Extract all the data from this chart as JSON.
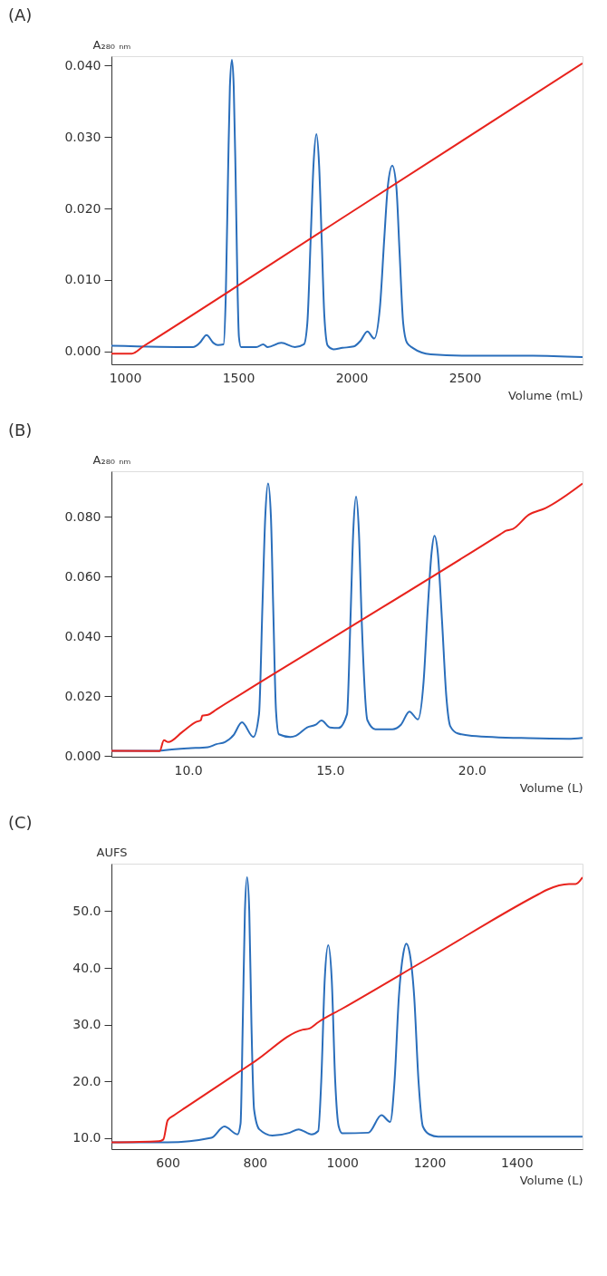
{
  "chart_data": [
    {
      "type": "line",
      "title": "(A)",
      "xlabel": "Volume (mL)",
      "ylabel": "A₂₈₀ ₙₘ",
      "xlim": [
        940,
        3020
      ],
      "ylim": [
        -0.0018,
        0.0413
      ],
      "xticks": [
        {
          "value": 1000,
          "label": "1000"
        },
        {
          "value": 1500,
          "label": "1500"
        },
        {
          "value": 2000,
          "label": "2000"
        },
        {
          "value": 2500,
          "label": "2500"
        }
      ],
      "yticks": [
        {
          "value": 0,
          "label": "0.000"
        },
        {
          "value": 0.01,
          "label": "0.010"
        },
        {
          "value": 0.02,
          "label": "0.020"
        },
        {
          "value": 0.03,
          "label": "0.030"
        },
        {
          "value": 0.04,
          "label": "0.040"
        }
      ],
      "grid": false,
      "legend": false,
      "marker": "none",
      "line_style": "solid",
      "series": [
        {
          "color": "#2a6ebb",
          "x": [
            940,
            1300,
            1330,
            1360,
            1390,
            1410,
            1435,
            1445,
            1455,
            1463,
            1472,
            1480,
            1488,
            1496,
            1503,
            1512,
            1580,
            1610,
            1630,
            1690,
            1750,
            1790,
            1805,
            1820,
            1832,
            1845,
            1857,
            1868,
            1880,
            1895,
            1920,
            1960,
            2010,
            2040,
            2070,
            2100,
            2125,
            2145,
            2160,
            2180,
            2198,
            2212,
            2228,
            2245,
            2270,
            2350,
            2500,
            2800,
            3020
          ],
          "values": [
            0.0008,
            0.0006,
            0.0012,
            0.0023,
            0.0012,
            0.0009,
            0.001,
            0.008,
            0.025,
            0.037,
            0.0408,
            0.037,
            0.025,
            0.01,
            0.002,
            0.0006,
            0.0006,
            0.001,
            0.0006,
            0.0012,
            0.0006,
            0.001,
            0.004,
            0.016,
            0.026,
            0.0304,
            0.026,
            0.016,
            0.005,
            0.0008,
            0.0003,
            0.0005,
            0.0007,
            0.0015,
            0.0028,
            0.0018,
            0.006,
            0.016,
            0.023,
            0.026,
            0.023,
            0.014,
            0.004,
            0.0012,
            0.0005,
            -0.0004,
            -0.0006,
            -0.0006,
            -0.0008
          ]
        },
        {
          "color": "#e8231d",
          "x": [
            940,
            1030,
            1080,
            2000,
            3020
          ],
          "values": [
            -0.0003,
            -0.0003,
            0.0007,
            0.0195,
            0.0403
          ]
        }
      ]
    },
    {
      "type": "line",
      "title": "(B)",
      "xlabel": "Volume (L)",
      "ylabel": "A₂₈₀ ₙₘ",
      "xlim": [
        7.3,
        23.9
      ],
      "ylim": [
        -0.0002,
        0.0953
      ],
      "xticks": [
        {
          "value": 10,
          "label": "10.0"
        },
        {
          "value": 15,
          "label": "15.0"
        },
        {
          "value": 20,
          "label": "20.0"
        }
      ],
      "yticks": [
        {
          "value": 0,
          "label": "0.000"
        },
        {
          "value": 0.02,
          "label": "0.020"
        },
        {
          "value": 0.04,
          "label": "0.040"
        },
        {
          "value": 0.06,
          "label": "0.060"
        },
        {
          "value": 0.08,
          "label": "0.080"
        }
      ],
      "grid": false,
      "legend": false,
      "marker": "none",
      "line_style": "solid",
      "series": [
        {
          "color": "#2a6ebb",
          "x": [
            7.3,
            9.0,
            9.2,
            10.0,
            10.7,
            11.0,
            11.3,
            11.6,
            11.9,
            12.3,
            12.5,
            12.62,
            12.72,
            12.82,
            12.92,
            13.0,
            13.1,
            13.2,
            13.6,
            13.8,
            14.2,
            14.5,
            14.7,
            15.0,
            15.3,
            15.6,
            15.72,
            15.82,
            15.92,
            16.02,
            16.12,
            16.32,
            16.6,
            17.2,
            17.5,
            17.8,
            18.1,
            18.3,
            18.45,
            18.58,
            18.68,
            18.8,
            18.95,
            19.1,
            19.24,
            19.5,
            20.0,
            22.0,
            23.4,
            23.9
          ],
          "values": [
            0.0018,
            0.0018,
            0.002,
            0.0026,
            0.003,
            0.004,
            0.0047,
            0.007,
            0.0113,
            0.0064,
            0.014,
            0.05,
            0.08,
            0.0912,
            0.08,
            0.05,
            0.015,
            0.0073,
            0.0064,
            0.0068,
            0.0096,
            0.0105,
            0.0119,
            0.0096,
            0.0094,
            0.014,
            0.045,
            0.075,
            0.0868,
            0.075,
            0.045,
            0.012,
            0.009,
            0.009,
            0.0105,
            0.0149,
            0.0123,
            0.025,
            0.05,
            0.068,
            0.0737,
            0.068,
            0.045,
            0.02,
            0.01,
            0.0076,
            0.0068,
            0.006,
            0.0058,
            0.0061
          ]
        },
        {
          "color": "#e8231d",
          "x": [
            7.3,
            9.0,
            9.15,
            9.3,
            9.8,
            10.3,
            10.45,
            10.5,
            10.7,
            11.0,
            15.0,
            21.0,
            21.2,
            21.45,
            22.0,
            22.6,
            23.9
          ],
          "values": [
            0.0018,
            0.0017,
            0.0053,
            0.0047,
            0.0081,
            0.0115,
            0.012,
            0.0135,
            0.0138,
            0.0156,
            0.039,
            0.0742,
            0.0754,
            0.076,
            0.0807,
            0.083,
            0.0912
          ]
        }
      ]
    },
    {
      "type": "line",
      "title": "(C)",
      "xlabel": "Volume (L)",
      "ylabel": "AUFS",
      "xlim": [
        471,
        1551
      ],
      "ylim": [
        8,
        58.4
      ],
      "xticks": [
        600,
        800,
        {
          "value": 1000,
          "label": "1000"
        },
        {
          "value": 1200,
          "label": "1200"
        },
        {
          "value": 1400,
          "label": "1400"
        }
      ],
      "yticks": [
        {
          "value": 10,
          "label": "10.0"
        },
        {
          "value": 20,
          "label": "20.0"
        },
        {
          "value": 30,
          "label": "30.0"
        },
        {
          "value": 40,
          "label": "40.0"
        },
        {
          "value": 50,
          "label": "50.0"
        }
      ],
      "grid": false,
      "legend": false,
      "marker": "none",
      "line_style": "solid",
      "series": [
        {
          "color": "#2a6ebb",
          "x": [
            471,
            600,
            700,
            730,
            760,
            767,
            772,
            777,
            782,
            787,
            792,
            798,
            810,
            840,
            880,
            900,
            930,
            945,
            952,
            960,
            968,
            976,
            984,
            992,
            1000,
            1060,
            1090,
            1110,
            1120,
            1130,
            1140,
            1147,
            1155,
            1165,
            1175,
            1185,
            1200,
            1220,
            1551
          ],
          "values": [
            9.2,
            9.2,
            10.0,
            12.0,
            10.6,
            12.5,
            30,
            50,
            56.0,
            50,
            30,
            15,
            11.5,
            10.4,
            10.9,
            11.5,
            10.6,
            11.2,
            20,
            38,
            44.0,
            38,
            20,
            12,
            10.8,
            10.9,
            14.0,
            12.8,
            20,
            35,
            42.5,
            44.3,
            42.5,
            35,
            20,
            12,
            10.6,
            10.2,
            10.2
          ]
        },
        {
          "color": "#e8231d",
          "x": [
            471,
            580,
            590,
            600,
            615,
            640,
            800,
            910,
            925,
            945,
            1000,
            1200,
            1450,
            1470,
            1520,
            1535,
            1551
          ],
          "values": [
            9.2,
            9.4,
            9.7,
            13.1,
            14.0,
            15.3,
            23.5,
            29.1,
            29.3,
            30.4,
            32.8,
            41.8,
            53.0,
            53.8,
            54.8,
            54.8,
            56.0
          ]
        }
      ]
    }
  ]
}
